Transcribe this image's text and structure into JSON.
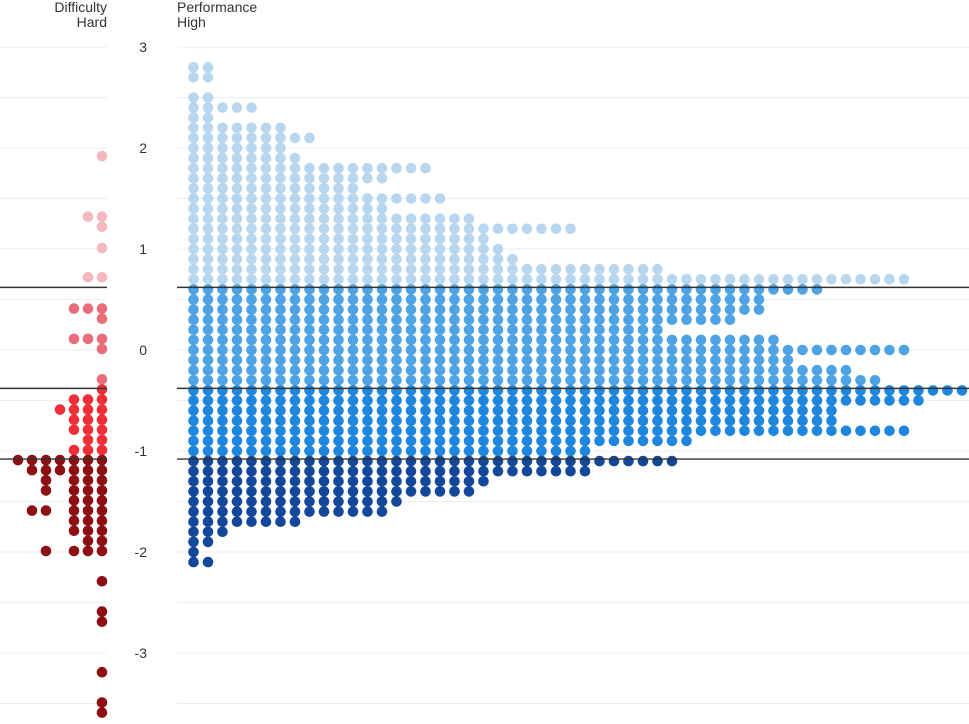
{
  "chart_data": {
    "type": "scatter",
    "panels": {
      "difficulty": {
        "title": "Difficulty",
        "subtitle": "Hard"
      },
      "performance": {
        "title": "Performance",
        "subtitle": "High"
      }
    },
    "y_ticks": [
      "3",
      "2",
      "1",
      "0",
      "-1",
      "-2",
      "-3"
    ],
    "ylim": [
      -3.6,
      3.0
    ],
    "grid": true,
    "thresholds": [
      0.62,
      -0.38,
      -1.08
    ],
    "colors": {
      "difficulty": [
        "#f5b8bf",
        "#e86f7a",
        "#ee2f38",
        "#8b0f13"
      ],
      "performance": [
        "#b8d7ef",
        "#4ea3e4",
        "#1f86de",
        "#13479a"
      ],
      "threshold_line": "#333333",
      "grid_line": "#ececec"
    },
    "difficulty_points": [
      {
        "x": 7,
        "y": 1.92
      },
      {
        "x": 6,
        "y": 1.32
      },
      {
        "x": 7,
        "y": 1.32
      },
      {
        "x": 7,
        "y": 1.22
      },
      {
        "x": 7,
        "y": 1.01
      },
      {
        "x": 6,
        "y": 0.72
      },
      {
        "x": 7,
        "y": 0.72
      },
      {
        "x": 5,
        "y": 0.41
      },
      {
        "x": 6,
        "y": 0.41
      },
      {
        "x": 7,
        "y": 0.41
      },
      {
        "x": 7,
        "y": 0.31
      },
      {
        "x": 5,
        "y": 0.11
      },
      {
        "x": 6,
        "y": 0.11
      },
      {
        "x": 7,
        "y": 0.11
      },
      {
        "x": 7,
        "y": 0.01
      },
      {
        "x": 7,
        "y": -0.29
      },
      {
        "x": 7,
        "y": -0.39
      },
      {
        "x": 5,
        "y": -0.49
      },
      {
        "x": 6,
        "y": -0.49
      },
      {
        "x": 7,
        "y": -0.49
      },
      {
        "x": 4,
        "y": -0.59
      },
      {
        "x": 5,
        "y": -0.59
      },
      {
        "x": 6,
        "y": -0.59
      },
      {
        "x": 7,
        "y": -0.59
      },
      {
        "x": 5,
        "y": -0.69
      },
      {
        "x": 6,
        "y": -0.69
      },
      {
        "x": 7,
        "y": -0.69
      },
      {
        "x": 5,
        "y": -0.79
      },
      {
        "x": 6,
        "y": -0.79
      },
      {
        "x": 7,
        "y": -0.79
      },
      {
        "x": 6,
        "y": -0.89
      },
      {
        "x": 7,
        "y": -0.89
      },
      {
        "x": 5,
        "y": -0.99
      },
      {
        "x": 6,
        "y": -0.99
      },
      {
        "x": 7,
        "y": -0.99
      },
      {
        "x": 1,
        "y": -1.09
      },
      {
        "x": 2,
        "y": -1.09
      },
      {
        "x": 3,
        "y": -1.09
      },
      {
        "x": 4,
        "y": -1.09
      },
      {
        "x": 5,
        "y": -1.09
      },
      {
        "x": 6,
        "y": -1.09
      },
      {
        "x": 7,
        "y": -1.09
      },
      {
        "x": 2,
        "y": -1.19
      },
      {
        "x": 3,
        "y": -1.19
      },
      {
        "x": 4,
        "y": -1.19
      },
      {
        "x": 5,
        "y": -1.19
      },
      {
        "x": 6,
        "y": -1.19
      },
      {
        "x": 7,
        "y": -1.19
      },
      {
        "x": 3,
        "y": -1.29
      },
      {
        "x": 5,
        "y": -1.29
      },
      {
        "x": 6,
        "y": -1.29
      },
      {
        "x": 7,
        "y": -1.29
      },
      {
        "x": 3,
        "y": -1.39
      },
      {
        "x": 5,
        "y": -1.39
      },
      {
        "x": 6,
        "y": -1.39
      },
      {
        "x": 7,
        "y": -1.39
      },
      {
        "x": 5,
        "y": -1.49
      },
      {
        "x": 6,
        "y": -1.49
      },
      {
        "x": 7,
        "y": -1.49
      },
      {
        "x": 2,
        "y": -1.59
      },
      {
        "x": 3,
        "y": -1.59
      },
      {
        "x": 5,
        "y": -1.59
      },
      {
        "x": 6,
        "y": -1.59
      },
      {
        "x": 7,
        "y": -1.59
      },
      {
        "x": 5,
        "y": -1.69
      },
      {
        "x": 6,
        "y": -1.69
      },
      {
        "x": 7,
        "y": -1.69
      },
      {
        "x": 5,
        "y": -1.79
      },
      {
        "x": 6,
        "y": -1.79
      },
      {
        "x": 7,
        "y": -1.79
      },
      {
        "x": 6,
        "y": -1.89
      },
      {
        "x": 7,
        "y": -1.89
      },
      {
        "x": 3,
        "y": -1.99
      },
      {
        "x": 5,
        "y": -1.99
      },
      {
        "x": 6,
        "y": -1.99
      },
      {
        "x": 7,
        "y": -1.99
      },
      {
        "x": 7,
        "y": -2.29
      },
      {
        "x": 7,
        "y": -2.59
      },
      {
        "x": 7,
        "y": -2.69
      },
      {
        "x": 7,
        "y": -3.19
      },
      {
        "x": 7,
        "y": -3.49
      },
      {
        "x": 7,
        "y": -3.59
      }
    ],
    "performance_rows": [
      {
        "y": 2.8,
        "count": 2
      },
      {
        "y": 2.7,
        "count": 2
      },
      {
        "y": 2.5,
        "count": 2
      },
      {
        "y": 2.4,
        "count": 5
      },
      {
        "y": 2.3,
        "count": 2
      },
      {
        "y": 2.2,
        "count": 7
      },
      {
        "y": 2.1,
        "count": 9
      },
      {
        "y": 2.0,
        "count": 7
      },
      {
        "y": 1.9,
        "count": 8
      },
      {
        "y": 1.8,
        "count": 17
      },
      {
        "y": 1.7,
        "count": 14
      },
      {
        "y": 1.6,
        "count": 12
      },
      {
        "y": 1.5,
        "count": 18
      },
      {
        "y": 1.4,
        "count": 14
      },
      {
        "y": 1.3,
        "count": 20
      },
      {
        "y": 1.2,
        "count": 27
      },
      {
        "y": 1.1,
        "count": 21
      },
      {
        "y": 1.0,
        "count": 22
      },
      {
        "y": 0.9,
        "count": 23
      },
      {
        "y": 0.8,
        "count": 33
      },
      {
        "y": 0.7,
        "count": 50
      },
      {
        "y": 0.6,
        "count": 44
      },
      {
        "y": 0.5,
        "count": 40
      },
      {
        "y": 0.4,
        "count": 40
      },
      {
        "y": 0.3,
        "count": 38
      },
      {
        "y": 0.2,
        "count": 33
      },
      {
        "y": 0.1,
        "count": 41
      },
      {
        "y": 0.0,
        "count": 50
      },
      {
        "y": -0.1,
        "count": 42
      },
      {
        "y": -0.2,
        "count": 46
      },
      {
        "y": -0.3,
        "count": 48
      },
      {
        "y": -0.4,
        "count": 54
      },
      {
        "y": -0.5,
        "count": 51
      },
      {
        "y": -0.6,
        "count": 45
      },
      {
        "y": -0.7,
        "count": 45
      },
      {
        "y": -0.8,
        "count": 50
      },
      {
        "y": -0.9,
        "count": 35
      },
      {
        "y": -1.0,
        "count": 28
      },
      {
        "y": -1.1,
        "count": 34
      },
      {
        "y": -1.2,
        "count": 28
      },
      {
        "y": -1.3,
        "count": 21
      },
      {
        "y": -1.4,
        "count": 20
      },
      {
        "y": -1.5,
        "count": 15
      },
      {
        "y": -1.6,
        "count": 14
      },
      {
        "y": -1.7,
        "count": 8
      },
      {
        "y": -1.8,
        "count": 3
      },
      {
        "y": -1.9,
        "count": 2
      },
      {
        "y": -2.0,
        "count": 1
      },
      {
        "y": -2.1,
        "count": 2
      }
    ]
  }
}
